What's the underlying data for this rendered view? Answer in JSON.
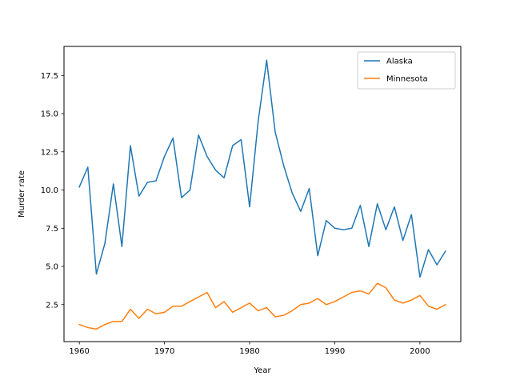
{
  "chart_data": {
    "type": "line",
    "title": "",
    "xlabel": "Year",
    "ylabel": "Murder rate",
    "xlim": [
      1958.2,
      2004.8
    ],
    "ylim": [
      0.08,
      19.4
    ],
    "xticks": [
      1960,
      1970,
      1980,
      1990,
      2000
    ],
    "xtick_labels": [
      "1960",
      "1970",
      "1980",
      "1990",
      "2000"
    ],
    "yticks": [
      2.5,
      5.0,
      7.5,
      10.0,
      12.5,
      15.0,
      17.5
    ],
    "ytick_labels": [
      "2.5",
      "5.0",
      "7.5",
      "10.0",
      "12.5",
      "15.0",
      "17.5"
    ],
    "grid": false,
    "legend_position": "top-right",
    "x": [
      1960,
      1961,
      1962,
      1963,
      1964,
      1965,
      1966,
      1967,
      1968,
      1969,
      1970,
      1971,
      1972,
      1973,
      1974,
      1975,
      1976,
      1977,
      1978,
      1979,
      1980,
      1981,
      1982,
      1983,
      1984,
      1985,
      1986,
      1987,
      1988,
      1989,
      1990,
      1991,
      1992,
      1993,
      1994,
      1995,
      1996,
      1997,
      1998,
      1999,
      2000,
      2001,
      2002,
      2003
    ],
    "series": [
      {
        "name": "Alaska",
        "color": "#1f77b4",
        "values": [
          10.2,
          11.5,
          4.5,
          6.5,
          10.4,
          6.3,
          12.9,
          9.6,
          10.5,
          10.6,
          12.2,
          13.4,
          9.5,
          10.0,
          13.6,
          12.2,
          11.3,
          10.8,
          12.9,
          13.3,
          8.9,
          14.5,
          18.5,
          13.8,
          11.6,
          9.8,
          8.6,
          10.1,
          5.7,
          8.0,
          7.5,
          7.4,
          7.5,
          9.0,
          6.3,
          9.1,
          7.4,
          8.9,
          6.7,
          8.4,
          4.3,
          6.1,
          5.1,
          6.0
        ]
      },
      {
        "name": "Minnesota",
        "color": "#ff7f0e",
        "values": [
          1.2,
          1.0,
          0.9,
          1.2,
          1.4,
          1.4,
          2.2,
          1.6,
          2.2,
          1.9,
          2.0,
          2.4,
          2.4,
          2.7,
          3.0,
          3.3,
          2.3,
          2.7,
          2.0,
          2.3,
          2.6,
          2.1,
          2.3,
          1.7,
          1.8,
          2.1,
          2.5,
          2.6,
          2.9,
          2.5,
          2.7,
          3.0,
          3.3,
          3.4,
          3.2,
          3.9,
          3.6,
          2.8,
          2.6,
          2.8,
          3.1,
          2.4,
          2.2,
          2.5
        ]
      }
    ]
  }
}
